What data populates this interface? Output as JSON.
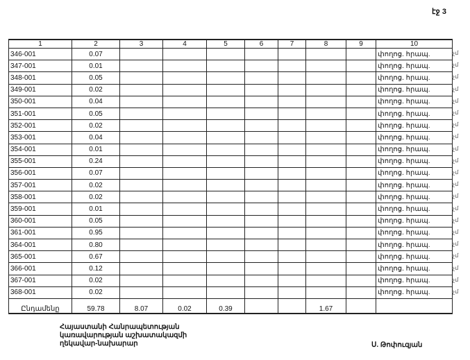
{
  "page_label": "էջ 3",
  "table": {
    "headers": [
      "1",
      "2",
      "3",
      "4",
      "5",
      "6",
      "7",
      "8",
      "9",
      "10"
    ],
    "rows": [
      {
        "id": "346-001",
        "c2": "0.07",
        "c10": "փողոց. հրապ."
      },
      {
        "id": "347-001",
        "c2": "0.01",
        "c10": "փողոց. հրապ."
      },
      {
        "id": "348-001",
        "c2": "0.05",
        "c10": "փողոց. հրապ."
      },
      {
        "id": "349-001",
        "c2": "0.02",
        "c10": "փողոց. հրապ."
      },
      {
        "id": "350-001",
        "c2": "0.04",
        "c10": "փողոց. հրապ."
      },
      {
        "id": "351-001",
        "c2": "0.05",
        "c10": "փողոց. հրապ."
      },
      {
        "id": "352-001",
        "c2": "0.02",
        "c10": "փողոց. հրապ."
      },
      {
        "id": "353-001",
        "c2": "0.04",
        "c10": "փողոց. հրապ."
      },
      {
        "id": "354-001",
        "c2": "0.01",
        "c10": "փողոց. հրապ."
      },
      {
        "id": "355-001",
        "c2": "0.24",
        "c10": "փողոց. հրապ."
      },
      {
        "id": "356-001",
        "c2": "0.07",
        "c10": "փողոց. հրապ."
      },
      {
        "id": "357-001",
        "c2": "0.02",
        "c10": "փողոց. հրապ."
      },
      {
        "id": "358-001",
        "c2": "0.02",
        "c10": "փողոց. հրապ."
      },
      {
        "id": "359-001",
        "c2": "0.01",
        "c10": "փողոց. հրապ."
      },
      {
        "id": "360-001",
        "c2": "0.05",
        "c10": "փողոց. հրապ."
      },
      {
        "id": "361-001",
        "c2": "0.95",
        "c10": "փողոց. հրապ."
      },
      {
        "id": "364-001",
        "c2": "0.80",
        "c10": "փողոց. հրապ."
      },
      {
        "id": "365-001",
        "c2": "0.67",
        "c10": "փողոց. հրապ."
      },
      {
        "id": "366-001",
        "c2": "0.12",
        "c10": "փողոց. հրապ."
      },
      {
        "id": "367-001",
        "c2": "0.02",
        "c10": "փողոց. հրապ."
      },
      {
        "id": "368-001",
        "c2": "0.02",
        "c10": "փողոց. հրապ."
      }
    ],
    "total": {
      "label": "Ընդամենը",
      "c2": "59.78",
      "c3": "8.07",
      "c4": "0.02",
      "c5": "0.39",
      "c8": "1.67"
    },
    "margin_mark": "չմ"
  },
  "footer": {
    "title_lines": [
      "Հայաստանի Հանրապետության",
      "կառավարության աշխատակազմի",
      "ղեկավար-նախարար"
    ],
    "signatory": "Ս. Թոփուզյան"
  }
}
